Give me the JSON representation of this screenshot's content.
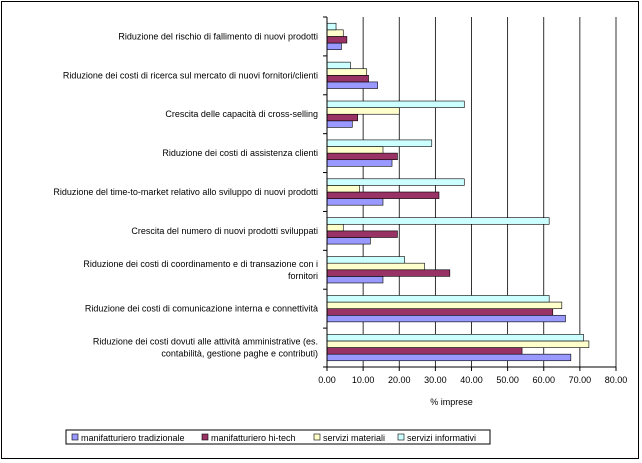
{
  "chart_data": {
    "type": "bar",
    "orientation": "horizontal",
    "categories": [
      [
        "Riduzione del rischio di fallimento di nuovi prodotti"
      ],
      [
        "Riduzione dei costi di ricerca sul mercato di nuovi fornitori/clienti"
      ],
      [
        "Crescita delle capacità di cross-selling"
      ],
      [
        "Riduzione dei costi di assistenza clienti"
      ],
      [
        "Riduzione del time-to-market relativo allo sviluppo di nuovi prodotti"
      ],
      [
        "Crescita del numero di nuovi prodotti sviluppati"
      ],
      [
        "Riduzione dei costi di coordinamento e di transazione con i",
        "fornitori"
      ],
      [
        "Riduzione dei costi di comunicazione interna e connettività"
      ],
      [
        "Riduzione dei costi dovuti alle attività amministrative (es.",
        "contabilità, gestione paghe e contributi)"
      ]
    ],
    "series": [
      {
        "name": "manifatturiero tradizionale",
        "color": "#9999FF",
        "values": [
          4,
          14,
          7,
          18,
          15.5,
          12,
          15.5,
          66,
          67.5
        ]
      },
      {
        "name": "manifatturiero hi-tech",
        "color": "#993366",
        "values": [
          5.5,
          11.5,
          8.5,
          19.5,
          31,
          19.5,
          34,
          62.5,
          54
        ]
      },
      {
        "name": "servizi materiali",
        "color": "#FFFFCC",
        "values": [
          4.5,
          11,
          20,
          15.5,
          9,
          4.5,
          27,
          65,
          72.5
        ]
      },
      {
        "name": "servizi informativi",
        "color": "#CCFFFF",
        "values": [
          2.5,
          6.5,
          38,
          29,
          38,
          61.5,
          21.5,
          61.5,
          71
        ]
      }
    ],
    "xlabel": "% imprese",
    "xlim": [
      0,
      80
    ],
    "xticks": [
      "0.00",
      "10.00",
      "20.00",
      "30.00",
      "40.00",
      "50.00",
      "60.00",
      "70.00",
      "80.00"
    ],
    "grid": true,
    "legend": "bottom"
  }
}
